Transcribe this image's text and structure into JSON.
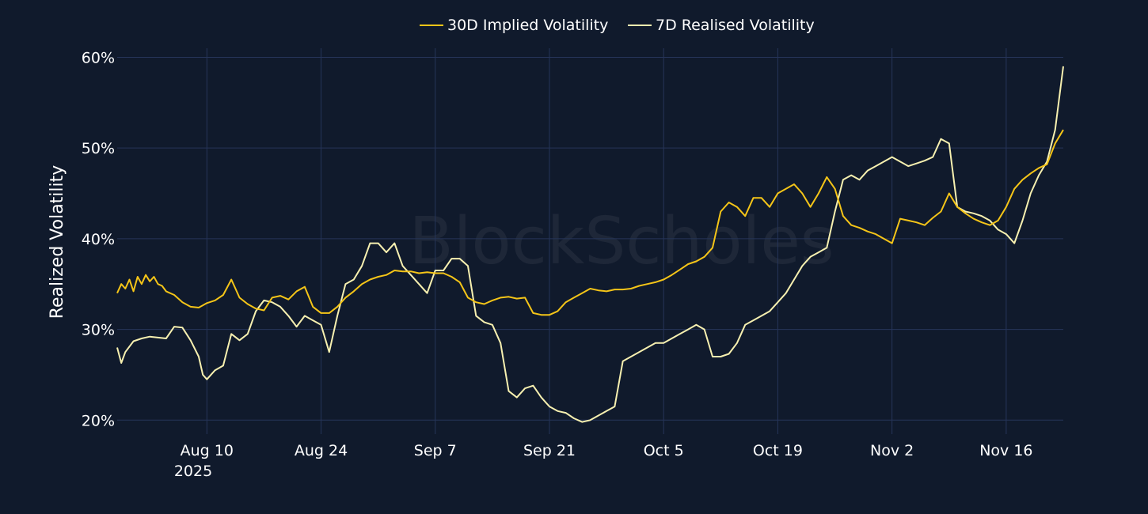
{
  "chart_data": {
    "type": "line",
    "title": "",
    "ylabel": "Realized Volatility",
    "xlabel": "",
    "watermark": "BlockScholes",
    "ylim": [
      19.5,
      61
    ],
    "yticks": [
      20,
      30,
      40,
      50,
      60
    ],
    "ytick_labels": [
      "20%",
      "30%",
      "40%",
      "50%",
      "60%"
    ],
    "x_start": "Jul 30 2025",
    "x_end": "Nov 23 2025",
    "xlim_days": [
      0,
      116
    ],
    "xticks_days": [
      11,
      25,
      39,
      53,
      67,
      81,
      95,
      109
    ],
    "xtick_labels": [
      "Aug 10",
      "Aug 24",
      "Sep 7",
      "Sep 21",
      "Oct 5",
      "Oct 19",
      "Nov 2",
      "Nov 16"
    ],
    "xtick_year_label": "2025",
    "legend_position": "top-center",
    "series": [
      {
        "name": "30D Implied Volatility",
        "color": "#f5c518",
        "points": [
          [
            0,
            34
          ],
          [
            0.5,
            35
          ],
          [
            1,
            34.5
          ],
          [
            1.5,
            35.5
          ],
          [
            2,
            34.2
          ],
          [
            2.5,
            35.8
          ],
          [
            3,
            35
          ],
          [
            3.5,
            36
          ],
          [
            4,
            35.3
          ],
          [
            4.5,
            35.8
          ],
          [
            5,
            35
          ],
          [
            5.5,
            34.8
          ],
          [
            6,
            34.2
          ],
          [
            7,
            33.8
          ],
          [
            8,
            33
          ],
          [
            9,
            32.5
          ],
          [
            10,
            32.4
          ],
          [
            11,
            32.9
          ],
          [
            12,
            33.2
          ],
          [
            13,
            33.8
          ],
          [
            14,
            35.5
          ],
          [
            14.5,
            34.5
          ],
          [
            15,
            33.5
          ],
          [
            16,
            32.8
          ],
          [
            17,
            32.3
          ],
          [
            18,
            32.1
          ],
          [
            19,
            33.5
          ],
          [
            20,
            33.7
          ],
          [
            21,
            33.3
          ],
          [
            22,
            34.2
          ],
          [
            23,
            34.7
          ],
          [
            24,
            32.5
          ],
          [
            25,
            31.8
          ],
          [
            26,
            31.8
          ],
          [
            27,
            32.5
          ],
          [
            28,
            33.5
          ],
          [
            29,
            34.2
          ],
          [
            30,
            35
          ],
          [
            31,
            35.5
          ],
          [
            32,
            35.8
          ],
          [
            33,
            36
          ],
          [
            34,
            36.5
          ],
          [
            35,
            36.4
          ],
          [
            36,
            36.4
          ],
          [
            37,
            36.2
          ],
          [
            38,
            36.3
          ],
          [
            39,
            36.2
          ],
          [
            40,
            36.2
          ],
          [
            41,
            35.8
          ],
          [
            42,
            35.2
          ],
          [
            43,
            33.5
          ],
          [
            44,
            33
          ],
          [
            45,
            32.8
          ],
          [
            46,
            33.2
          ],
          [
            47,
            33.5
          ],
          [
            48,
            33.6
          ],
          [
            49,
            33.4
          ],
          [
            50,
            33.5
          ],
          [
            51,
            31.8
          ],
          [
            52,
            31.6
          ],
          [
            53,
            31.6
          ],
          [
            54,
            32
          ],
          [
            55,
            33
          ],
          [
            56,
            33.5
          ],
          [
            57,
            34
          ],
          [
            58,
            34.5
          ],
          [
            59,
            34.3
          ],
          [
            60,
            34.2
          ],
          [
            61,
            34.4
          ],
          [
            62,
            34.4
          ],
          [
            63,
            34.5
          ],
          [
            64,
            34.8
          ],
          [
            65,
            35
          ],
          [
            66,
            35.2
          ],
          [
            67,
            35.5
          ],
          [
            68,
            36
          ],
          [
            69,
            36.6
          ],
          [
            70,
            37.2
          ],
          [
            71,
            37.5
          ],
          [
            72,
            38
          ],
          [
            73,
            39
          ],
          [
            74,
            43
          ],
          [
            75,
            44
          ],
          [
            76,
            43.5
          ],
          [
            77,
            42.5
          ],
          [
            78,
            44.5
          ],
          [
            79,
            44.5
          ],
          [
            80,
            43.5
          ],
          [
            81,
            45
          ],
          [
            82,
            45.5
          ],
          [
            83,
            46
          ],
          [
            84,
            45
          ],
          [
            85,
            43.5
          ],
          [
            86,
            45
          ],
          [
            87,
            46.8
          ],
          [
            88,
            45.5
          ],
          [
            89,
            42.5
          ],
          [
            90,
            41.5
          ],
          [
            91,
            41.2
          ],
          [
            92,
            40.8
          ],
          [
            93,
            40.5
          ],
          [
            94,
            40
          ],
          [
            95,
            39.5
          ],
          [
            96,
            42.2
          ],
          [
            97,
            42
          ],
          [
            98,
            41.8
          ],
          [
            99,
            41.5
          ],
          [
            100,
            42.3
          ],
          [
            101,
            43
          ],
          [
            102,
            45
          ],
          [
            103,
            43.5
          ],
          [
            104,
            42.8
          ],
          [
            105,
            42.2
          ],
          [
            106,
            41.8
          ],
          [
            107,
            41.5
          ],
          [
            108,
            42
          ],
          [
            109,
            43.5
          ],
          [
            110,
            45.5
          ],
          [
            111,
            46.5
          ],
          [
            112,
            47.2
          ],
          [
            113,
            47.8
          ],
          [
            114,
            48.2
          ],
          [
            115,
            50.5
          ],
          [
            116,
            52
          ]
        ]
      },
      {
        "name": "7D Realised Volatility",
        "color": "#f7f0b0",
        "points": [
          [
            0,
            28
          ],
          [
            0.5,
            26.3
          ],
          [
            1,
            27.5
          ],
          [
            2,
            28.7
          ],
          [
            3,
            29
          ],
          [
            4,
            29.2
          ],
          [
            5,
            29.1
          ],
          [
            6,
            29
          ],
          [
            7,
            30.3
          ],
          [
            8,
            30.2
          ],
          [
            9,
            28.8
          ],
          [
            10,
            27
          ],
          [
            10.5,
            25
          ],
          [
            11,
            24.5
          ],
          [
            12,
            25.5
          ],
          [
            13,
            26
          ],
          [
            14,
            29.5
          ],
          [
            15,
            28.8
          ],
          [
            16,
            29.5
          ],
          [
            17,
            32
          ],
          [
            18,
            33.2
          ],
          [
            19,
            33
          ],
          [
            20,
            32.5
          ],
          [
            21,
            31.5
          ],
          [
            22,
            30.3
          ],
          [
            23,
            31.5
          ],
          [
            24,
            31
          ],
          [
            25,
            30.5
          ],
          [
            26,
            27.5
          ],
          [
            27,
            31.5
          ],
          [
            28,
            35
          ],
          [
            29,
            35.5
          ],
          [
            30,
            37
          ],
          [
            31,
            39.5
          ],
          [
            32,
            39.5
          ],
          [
            33,
            38.5
          ],
          [
            34,
            39.5
          ],
          [
            35,
            37
          ],
          [
            36,
            36
          ],
          [
            37,
            35
          ],
          [
            38,
            34
          ],
          [
            39,
            36.5
          ],
          [
            40,
            36.5
          ],
          [
            41,
            37.8
          ],
          [
            42,
            37.8
          ],
          [
            43,
            37
          ],
          [
            44,
            31.5
          ],
          [
            45,
            30.8
          ],
          [
            46,
            30.5
          ],
          [
            47,
            28.5
          ],
          [
            48,
            23.2
          ],
          [
            49,
            22.5
          ],
          [
            50,
            23.5
          ],
          [
            51,
            23.8
          ],
          [
            52,
            22.5
          ],
          [
            53,
            21.5
          ],
          [
            54,
            21
          ],
          [
            55,
            20.8
          ],
          [
            56,
            20.2
          ],
          [
            57,
            19.8
          ],
          [
            58,
            20
          ],
          [
            59,
            20.5
          ],
          [
            60,
            21
          ],
          [
            61,
            21.5
          ],
          [
            62,
            26.5
          ],
          [
            63,
            27
          ],
          [
            64,
            27.5
          ],
          [
            65,
            28
          ],
          [
            66,
            28.5
          ],
          [
            67,
            28.5
          ],
          [
            68,
            29
          ],
          [
            69,
            29.5
          ],
          [
            70,
            30
          ],
          [
            71,
            30.5
          ],
          [
            72,
            30
          ],
          [
            73,
            27
          ],
          [
            74,
            27
          ],
          [
            75,
            27.3
          ],
          [
            76,
            28.5
          ],
          [
            77,
            30.5
          ],
          [
            78,
            31
          ],
          [
            79,
            31.5
          ],
          [
            80,
            32
          ],
          [
            81,
            33
          ],
          [
            82,
            34
          ],
          [
            83,
            35.5
          ],
          [
            84,
            37
          ],
          [
            85,
            38
          ],
          [
            86,
            38.5
          ],
          [
            87,
            39
          ],
          [
            88,
            43
          ],
          [
            89,
            46.5
          ],
          [
            90,
            47
          ],
          [
            91,
            46.5
          ],
          [
            92,
            47.5
          ],
          [
            93,
            48
          ],
          [
            94,
            48.5
          ],
          [
            95,
            49
          ],
          [
            96,
            48.5
          ],
          [
            97,
            48
          ],
          [
            98,
            48.3
          ],
          [
            99,
            48.6
          ],
          [
            100,
            49
          ],
          [
            101,
            51
          ],
          [
            102,
            50.5
          ],
          [
            103,
            43.5
          ],
          [
            104,
            43
          ],
          [
            105,
            42.8
          ],
          [
            106,
            42.5
          ],
          [
            107,
            42
          ],
          [
            108,
            41
          ],
          [
            109,
            40.5
          ],
          [
            110,
            39.5
          ],
          [
            111,
            42
          ],
          [
            112,
            45
          ],
          [
            113,
            47
          ],
          [
            114,
            48.5
          ],
          [
            115,
            52
          ],
          [
            116,
            59
          ]
        ]
      }
    ]
  }
}
